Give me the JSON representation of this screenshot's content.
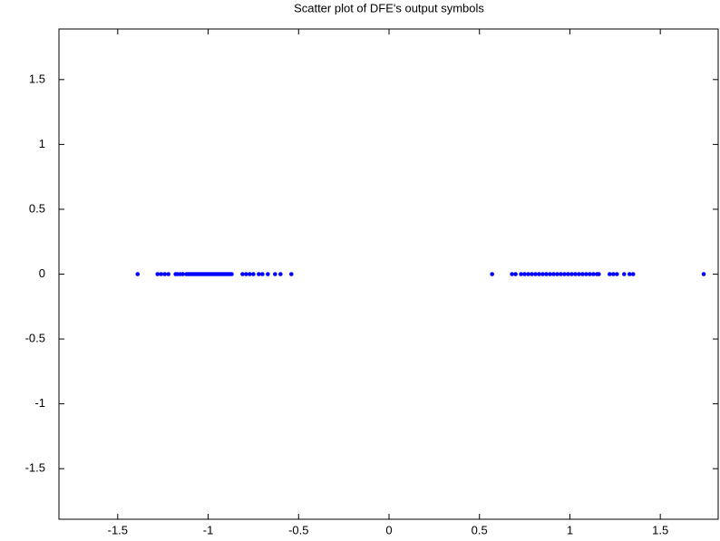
{
  "chart_data": {
    "type": "scatter",
    "title": "Scatter plot of DFE's output symbols",
    "color": "#0000ff",
    "xlim": [
      -1.825,
      1.82
    ],
    "ylim": [
      -1.89,
      1.89
    ],
    "xticks": [
      -1.5,
      -1,
      -0.5,
      0,
      0.5,
      1,
      1.5
    ],
    "yticks": [
      -1.5,
      -1,
      -0.5,
      0,
      0.5,
      1,
      1.5
    ],
    "series": [
      {
        "name": null,
        "color": "#0000ff",
        "x": [
          -1.39,
          -1.28,
          -1.26,
          -1.24,
          -1.22,
          -1.18,
          -1.17,
          -1.155,
          -1.14,
          -1.12,
          -1.11,
          -1.1,
          -1.09,
          -1.08,
          -1.07,
          -1.06,
          -1.05,
          -1.04,
          -1.03,
          -1.02,
          -1.01,
          -1.0,
          -0.99,
          -0.98,
          -0.97,
          -0.96,
          -0.95,
          -0.94,
          -0.93,
          -0.92,
          -0.91,
          -0.9,
          -0.89,
          -0.88,
          -0.87,
          -0.81,
          -0.79,
          -0.77,
          -0.75,
          -0.72,
          -0.7,
          -0.67,
          -0.63,
          -0.6,
          -0.54,
          0.57,
          0.68,
          0.7,
          0.73,
          0.75,
          0.77,
          0.79,
          0.81,
          0.83,
          0.85,
          0.87,
          0.89,
          0.91,
          0.93,
          0.95,
          0.97,
          0.99,
          1.01,
          1.03,
          1.05,
          1.07,
          1.09,
          1.11,
          1.13,
          1.15,
          1.16,
          1.22,
          1.24,
          1.26,
          1.3,
          1.33,
          1.35,
          1.74
        ],
        "y": [
          0,
          0,
          0,
          0,
          0,
          0,
          0,
          0,
          0,
          0,
          0,
          0,
          0,
          0,
          0,
          0,
          0,
          0,
          0,
          0,
          0,
          0,
          0,
          0,
          0,
          0,
          0,
          0,
          0,
          0,
          0,
          0,
          0,
          0,
          0,
          0,
          0,
          0,
          0,
          0,
          0,
          0,
          0,
          0,
          0,
          0,
          0,
          0,
          0,
          0,
          0,
          0,
          0,
          0,
          0,
          0,
          0,
          0,
          0,
          0,
          0,
          0,
          0,
          0,
          0,
          0,
          0,
          0,
          0,
          0,
          0,
          0,
          0,
          0,
          0,
          0,
          0,
          0
        ]
      }
    ]
  }
}
